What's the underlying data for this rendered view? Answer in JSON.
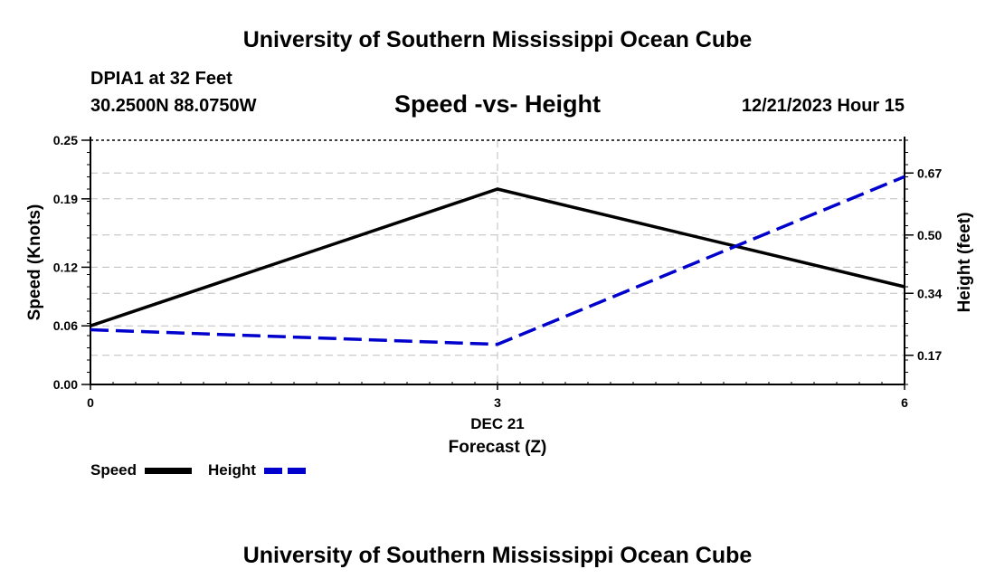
{
  "header": {
    "title": "University of Southern Mississippi Ocean Cube",
    "station": "DPIA1 at 32 Feet",
    "coords": "30.2500N  88.0750W",
    "chart_title": "Speed -vs- Height",
    "datetime": "12/21/2023 Hour 15"
  },
  "footer": {
    "title": "University of Southern Mississippi Ocean Cube"
  },
  "legend": {
    "speed_label": "Speed",
    "height_label": "Height"
  },
  "colors": {
    "speed": "#000000",
    "height": "#0000cc",
    "grid": "#bdbdbd"
  },
  "chart_data": {
    "type": "line",
    "title": "Speed -vs- Height",
    "x": [
      0,
      3,
      6
    ],
    "x_tick_labels": [
      "0",
      "3",
      "6"
    ],
    "x_date_label": "DEC 21",
    "xlabel": "Forecast (Z)",
    "xlim": [
      0,
      6
    ],
    "series": [
      {
        "name": "Speed",
        "axis": "left",
        "style": "solid",
        "values": [
          0.06,
          0.2,
          0.1
        ]
      },
      {
        "name": "Height",
        "axis": "right",
        "style": "dashed",
        "values": [
          0.24,
          0.2,
          0.66
        ]
      }
    ],
    "left_axis": {
      "label": "Speed (Knots)",
      "ylim": [
        0,
        0.25
      ],
      "ticks": [
        0.0,
        0.06,
        0.12,
        0.19,
        0.25
      ],
      "tick_labels": [
        "0.00",
        "0.06",
        "0.12",
        "0.19",
        "0.25"
      ]
    },
    "right_axis": {
      "label": "Height (feet)",
      "ylim": [
        0.09,
        0.76
      ],
      "ticks": [
        0.17,
        0.34,
        0.5,
        0.67
      ],
      "tick_labels": [
        "0.17",
        "0.34",
        "0.50",
        "0.67"
      ]
    },
    "grid": true,
    "legend_position": "bottom-left"
  }
}
